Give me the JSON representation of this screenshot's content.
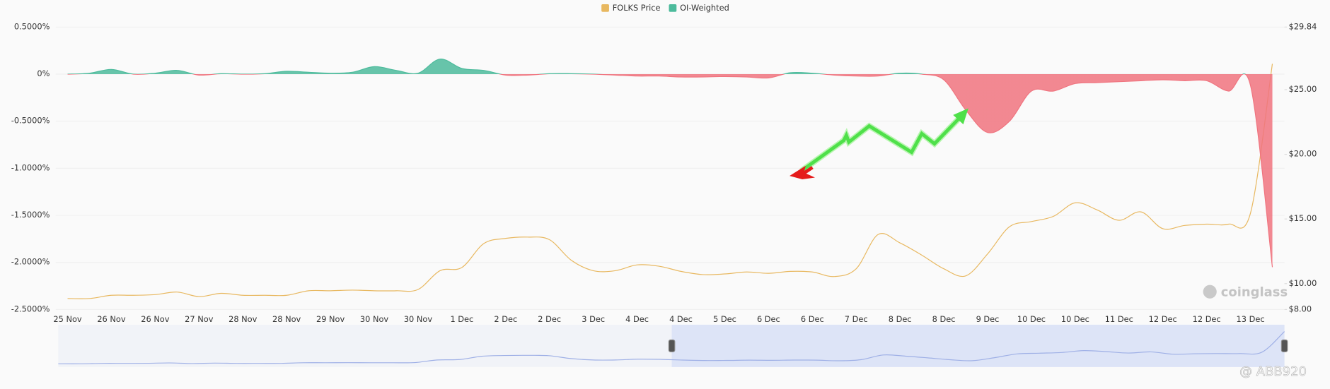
{
  "chart_data": {
    "type": "line",
    "categories": [
      "25 Nov",
      null,
      "26 Nov",
      null,
      "26 Nov",
      null,
      "27 Nov",
      null,
      "28 Nov",
      null,
      "28 Nov",
      null,
      "29 Nov",
      null,
      "30 Nov",
      null,
      "30 Nov",
      null,
      "1 Dec",
      null,
      "2 Dec",
      null,
      "2 Dec",
      null,
      "3 Dec",
      null,
      "4 Dec",
      null,
      "4 Dec",
      null,
      "5 Dec",
      null,
      "6 Dec",
      null,
      "6 Dec",
      null,
      "7 Dec",
      null,
      "8 Dec",
      null,
      "8 Dec",
      null,
      "9 Dec",
      null,
      "10 Dec",
      null,
      "10 Dec",
      null,
      "11 Dec",
      null,
      "12 Dec",
      null,
      "12 Dec",
      null,
      "13 Dec",
      null
    ],
    "series": [
      {
        "name": "FOLKS Price",
        "color": "#e8b860",
        "axis": "y2",
        "values": [
          8.85,
          8.85,
          9.1,
          9.1,
          9.15,
          9.35,
          9.0,
          9.25,
          9.1,
          9.1,
          9.1,
          9.45,
          9.45,
          9.5,
          9.45,
          9.45,
          9.55,
          11.0,
          11.25,
          13.1,
          13.5,
          13.6,
          13.4,
          11.8,
          11.0,
          11.0,
          11.45,
          11.35,
          10.95,
          10.7,
          10.75,
          10.9,
          10.8,
          10.95,
          10.9,
          10.55,
          11.15,
          13.8,
          13.15,
          12.2,
          11.15,
          10.6,
          12.3,
          14.4,
          14.8,
          15.2,
          16.25,
          15.7,
          14.9,
          15.55,
          14.25,
          14.5,
          14.6,
          14.6,
          15.45,
          27.0
        ]
      },
      {
        "name": "OI-Weighted",
        "color": "#4dbb9c",
        "negative_color": "#f0747f",
        "values": [
          0,
          0.01,
          0.05,
          0.0,
          0.01,
          0.04,
          -0.01,
          0.005,
          0.0,
          0.005,
          0.03,
          0.02,
          0.01,
          0.02,
          0.08,
          0.04,
          0.01,
          0.16,
          0.06,
          0.04,
          -0.01,
          -0.01,
          0.005,
          0.005,
          0.0,
          -0.01,
          -0.02,
          -0.02,
          -0.03,
          -0.03,
          -0.025,
          -0.03,
          -0.04,
          0.015,
          0.01,
          -0.01,
          -0.02,
          -0.02,
          0.01,
          0.0,
          -0.06,
          -0.38,
          -0.62,
          -0.5,
          -0.18,
          -0.18,
          -0.1,
          -0.09,
          -0.08,
          -0.07,
          -0.06,
          -0.07,
          -0.07,
          -0.18,
          -0.12,
          -2.05
        ]
      }
    ],
    "ylim": [
      -2.5,
      0.5
    ],
    "yticks": [
      {
        "value": 0.5,
        "label": "0.5000%"
      },
      {
        "value": 0,
        "label": "0%"
      },
      {
        "value": -0.5,
        "label": "-0.5000%"
      },
      {
        "value": -1.0,
        "label": "-1.0000%"
      },
      {
        "value": -1.5,
        "label": "-1.5000%"
      },
      {
        "value": -2.0,
        "label": "-2.0000%"
      },
      {
        "value": -2.5,
        "label": "-2.5000%"
      }
    ],
    "y2lim": [
      8,
      29.84
    ],
    "y2ticks": [
      {
        "value": 29.84,
        "label": "$29.84"
      },
      {
        "value": 25,
        "label": "$25.00"
      },
      {
        "value": 20,
        "label": "$20.00"
      },
      {
        "value": 15,
        "label": "$15.00"
      },
      {
        "value": 10,
        "label": "$10.00"
      },
      {
        "value": 8,
        "label": "$8.00"
      }
    ],
    "grid": true,
    "legend": "top",
    "watermark": "coinglass",
    "credit": "@ ABB920"
  }
}
